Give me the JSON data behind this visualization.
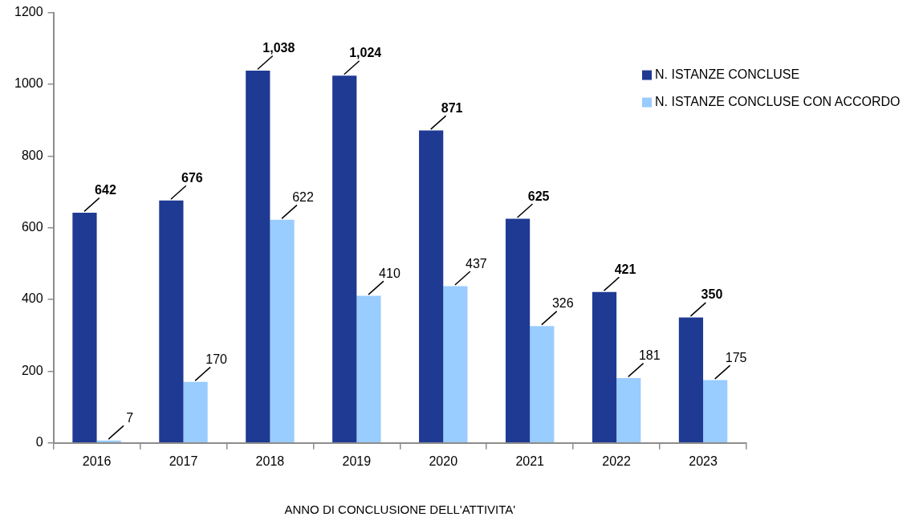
{
  "chart_data": {
    "type": "bar",
    "xlabel": "ANNO DI CONCLUSIONE DELL'ATTIVITA'",
    "categories": [
      "2016",
      "2017",
      "2018",
      "2019",
      "2020",
      "2021",
      "2022",
      "2023"
    ],
    "series": [
      {
        "name": "N. ISTANZE CONCLUSE",
        "color": "#1f3a93",
        "values": [
          642,
          676,
          1038,
          1024,
          871,
          625,
          421,
          350
        ],
        "value_labels": [
          "642",
          "676",
          "1,038",
          "1,024",
          "871",
          "625",
          "421",
          "350"
        ]
      },
      {
        "name": "N. ISTANZE CONCLUSE CON ACCORDO",
        "color": "#99ccff",
        "values": [
          7,
          170,
          622,
          410,
          437,
          326,
          181,
          175
        ],
        "value_labels": [
          "7",
          "170",
          "622",
          "410",
          "437",
          "326",
          "181",
          "175"
        ]
      }
    ],
    "ylim": [
      0,
      1200
    ],
    "yticks": [
      0,
      200,
      400,
      600,
      800,
      1000,
      1200
    ],
    "legend": "top right"
  }
}
